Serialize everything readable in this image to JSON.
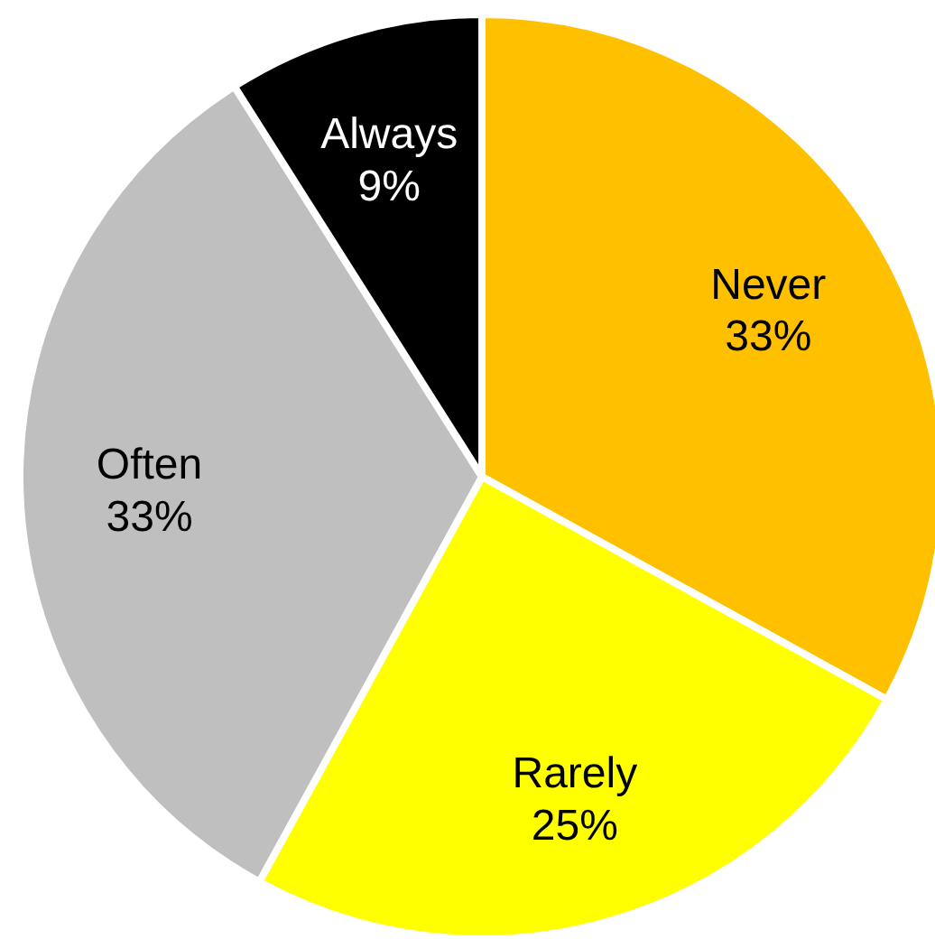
{
  "chart_data": {
    "type": "pie",
    "categories": [
      "Never",
      "Rarely",
      "Often",
      "Always"
    ],
    "values": [
      33,
      25,
      33,
      9
    ],
    "value_labels": [
      "33%",
      "25%",
      "33%",
      "9%"
    ],
    "colors": [
      "#ffc000",
      "#ffff00",
      "#bfbfbf",
      "#000000"
    ]
  }
}
